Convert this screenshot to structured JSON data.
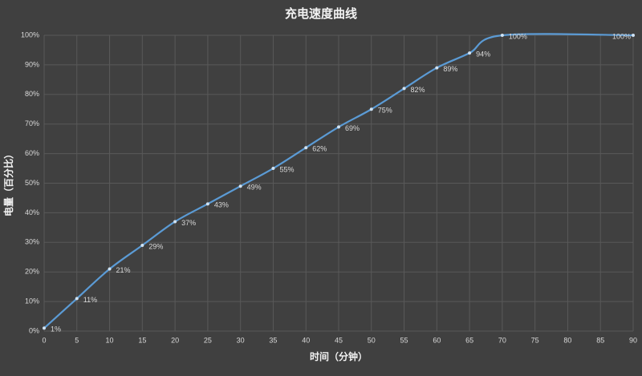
{
  "chart_data": {
    "type": "line",
    "title": "充电速度曲线",
    "x_label": "时间（分钟）",
    "y_label": "电量（百分比）",
    "x": [
      0,
      5,
      10,
      15,
      20,
      25,
      30,
      35,
      40,
      45,
      50,
      55,
      60,
      65,
      70,
      90
    ],
    "series": [
      {
        "name": "电量",
        "color": "#5b9bd5",
        "values": [
          1,
          11,
          21,
          29,
          37,
          43,
          49,
          55,
          62,
          69,
          75,
          82,
          89,
          94,
          100,
          100
        ],
        "value_labels": [
          "1%",
          "11%",
          "21%",
          "29%",
          "37%",
          "43%",
          "49%",
          "55%",
          "62%",
          "69%",
          "75%",
          "82%",
          "89%",
          "94%",
          "100%",
          "100%"
        ]
      }
    ],
    "xlim": [
      0,
      90
    ],
    "xticks": [
      0,
      5,
      10,
      15,
      20,
      25,
      30,
      35,
      40,
      45,
      50,
      55,
      60,
      65,
      70,
      75,
      80,
      85,
      90
    ],
    "ylim": [
      0,
      100
    ],
    "yticks": [
      {
        "value": 0,
        "label": "0%"
      },
      {
        "value": 10,
        "label": "10%"
      },
      {
        "value": 20,
        "label": "20%"
      },
      {
        "value": 30,
        "label": "30%"
      },
      {
        "value": 40,
        "label": "40%"
      },
      {
        "value": 50,
        "label": "50%"
      },
      {
        "value": 60,
        "label": "60%"
      },
      {
        "value": 70,
        "label": "70%"
      },
      {
        "value": 80,
        "label": "80%"
      },
      {
        "value": 90,
        "label": "90%"
      },
      {
        "value": 100,
        "label": "100%"
      }
    ],
    "grid": true
  }
}
